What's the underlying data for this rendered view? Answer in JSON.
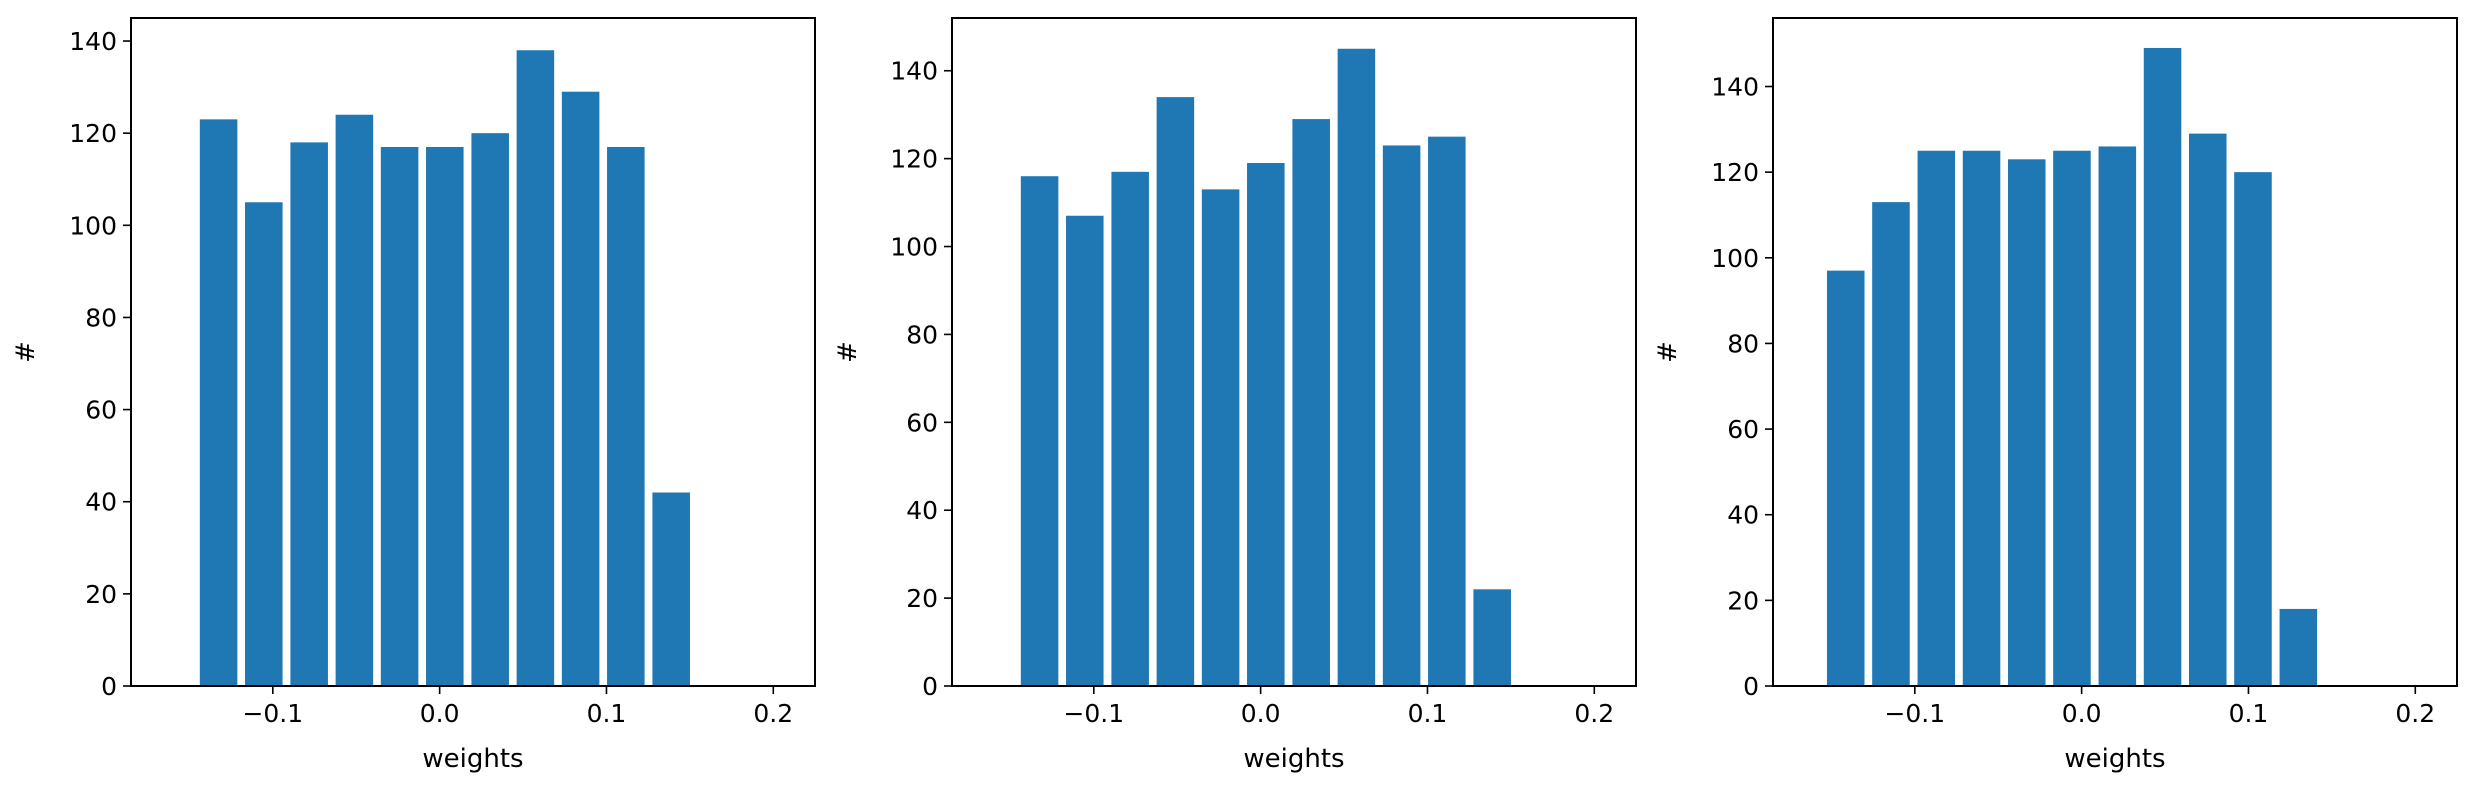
{
  "chart_data": [
    {
      "type": "bar",
      "xlabel": "weights",
      "ylabel": "#",
      "xlim": [
        -0.185,
        0.225
      ],
      "ylim": [
        0,
        145
      ],
      "xticks": [
        -0.1,
        0.0,
        0.1,
        0.2
      ],
      "xtick_labels": [
        "−0.1",
        "0.0",
        "0.1",
        "0.2"
      ],
      "yticks": [
        0,
        20,
        40,
        60,
        80,
        100,
        120,
        140
      ],
      "ytick_labels": [
        "0",
        "20",
        "40",
        "60",
        "80",
        "100",
        "120",
        "140"
      ],
      "bar_width": 0.0225,
      "x": [
        -0.1325,
        -0.1054,
        -0.0782,
        -0.0511,
        -0.024,
        0.0031,
        0.0303,
        0.0574,
        0.0845,
        0.1116,
        0.1388
      ],
      "values": [
        123,
        105,
        118,
        124,
        117,
        117,
        120,
        138,
        129,
        117,
        42
      ],
      "color": "#1f77b4",
      "grid": false
    },
    {
      "type": "bar",
      "xlabel": "weights",
      "ylabel": "#",
      "xlim": [
        -0.185,
        0.225
      ],
      "ylim": [
        0,
        152
      ],
      "xticks": [
        -0.1,
        0.0,
        0.1,
        0.2
      ],
      "xtick_labels": [
        "−0.1",
        "0.0",
        "0.1",
        "0.2"
      ],
      "yticks": [
        0,
        20,
        40,
        60,
        80,
        100,
        120,
        140
      ],
      "ytick_labels": [
        "0",
        "20",
        "40",
        "60",
        "80",
        "100",
        "120",
        "140"
      ],
      "bar_width": 0.0225,
      "x": [
        -0.1325,
        -0.1054,
        -0.0782,
        -0.0511,
        -0.024,
        0.0031,
        0.0303,
        0.0574,
        0.0845,
        0.1116,
        0.1388
      ],
      "values": [
        116,
        107,
        117,
        134,
        113,
        119,
        129,
        145,
        123,
        125,
        22
      ],
      "color": "#1f77b4",
      "grid": false
    },
    {
      "type": "bar",
      "xlabel": "weights",
      "ylabel": "#",
      "xlim": [
        -0.185,
        0.225
      ],
      "ylim": [
        0,
        156
      ],
      "xticks": [
        -0.1,
        0.0,
        0.1,
        0.2
      ],
      "xtick_labels": [
        "−0.1",
        "0.0",
        "0.1",
        "0.2"
      ],
      "yticks": [
        0,
        20,
        40,
        60,
        80,
        100,
        120,
        140
      ],
      "ytick_labels": [
        "0",
        "20",
        "40",
        "60",
        "80",
        "100",
        "120",
        "140"
      ],
      "bar_width": 0.0225,
      "x": [
        -0.1414,
        -0.1143,
        -0.0871,
        -0.06,
        -0.0329,
        -0.0058,
        0.0214,
        0.0485,
        0.0756,
        0.1027,
        0.1299
      ],
      "values": [
        97,
        113,
        125,
        125,
        123,
        125,
        126,
        149,
        129,
        120,
        18
      ],
      "color": "#1f77b4",
      "grid": false
    }
  ]
}
